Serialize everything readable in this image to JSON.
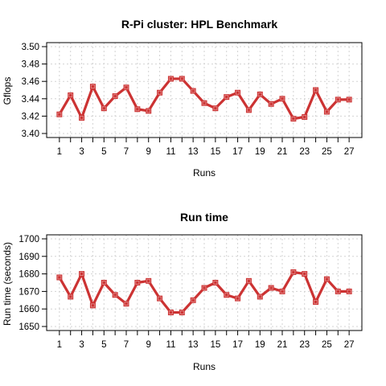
{
  "chart_data": [
    {
      "type": "line",
      "title": "R-Pi cluster: HPL Benchmark",
      "xlabel": "Runs",
      "ylabel": "Gflops",
      "x": [
        1,
        2,
        3,
        4,
        5,
        6,
        7,
        8,
        9,
        10,
        11,
        12,
        13,
        14,
        15,
        16,
        17,
        18,
        19,
        20,
        21,
        22,
        23,
        24,
        25,
        26,
        27
      ],
      "xlim": [
        0,
        28
      ],
      "xticks": [
        1,
        3,
        5,
        7,
        9,
        11,
        13,
        15,
        17,
        19,
        21,
        23,
        25,
        27
      ],
      "ylim": [
        3.4,
        3.5
      ],
      "yticks": [
        3.4,
        3.42,
        3.44,
        3.46,
        3.48,
        3.5
      ],
      "yticklabels": [
        "3.40",
        "3.42",
        "3.44",
        "3.46",
        "3.48",
        "3.50"
      ],
      "grid": true,
      "color": "#cc3333",
      "series": [
        {
          "values": [
            3.422,
            3.444,
            3.418,
            3.454,
            3.429,
            3.443,
            3.453,
            3.428,
            3.426,
            3.447,
            3.463,
            3.463,
            3.449,
            3.435,
            3.429,
            3.442,
            3.447,
            3.427,
            3.445,
            3.434,
            3.44,
            3.417,
            3.419,
            3.45,
            3.425,
            3.439,
            3.439
          ]
        }
      ]
    },
    {
      "type": "line",
      "title": "Run time",
      "xlabel": "Runs",
      "ylabel": "Run time (seconds)",
      "x": [
        1,
        2,
        3,
        4,
        5,
        6,
        7,
        8,
        9,
        10,
        11,
        12,
        13,
        14,
        15,
        16,
        17,
        18,
        19,
        20,
        21,
        22,
        23,
        24,
        25,
        26,
        27
      ],
      "xlim": [
        0,
        28
      ],
      "xticks": [
        1,
        3,
        5,
        7,
        9,
        11,
        13,
        15,
        17,
        19,
        21,
        23,
        25,
        27
      ],
      "ylim": [
        1650,
        1700
      ],
      "yticks": [
        1650,
        1660,
        1670,
        1680,
        1690,
        1700
      ],
      "yticklabels": [
        "1650",
        "1660",
        "1670",
        "1680",
        "1690",
        "1700"
      ],
      "grid": true,
      "color": "#cc3333",
      "series": [
        {
          "values": [
            1678,
            1667,
            1680,
            1662,
            1675,
            1668,
            1663,
            1675,
            1676,
            1666,
            1658,
            1658,
            1665,
            1672,
            1675,
            1668,
            1666,
            1676,
            1667,
            1672,
            1670,
            1681,
            1680,
            1664,
            1677,
            1670,
            1670
          ]
        }
      ]
    }
  ]
}
